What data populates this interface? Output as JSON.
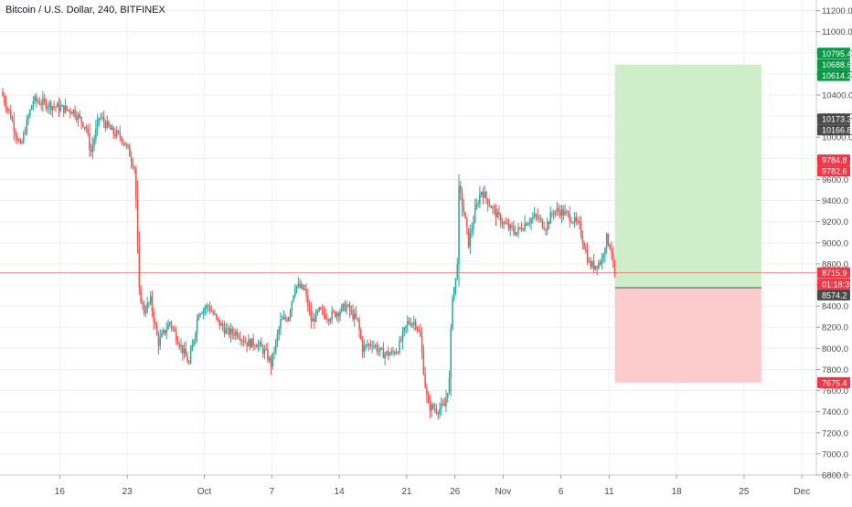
{
  "title": "Bitcoin / U.S. Dollar, 240, BITFINEX",
  "chart_data": {
    "type": "candlestick",
    "symbol": "Bitcoin / U.S. Dollar",
    "interval": "240",
    "exchange": "BITFINEX",
    "ylim": [
      6800,
      11300
    ],
    "y_ticks": [
      6800,
      7000,
      7200,
      7400,
      7600,
      7800,
      8000,
      8200,
      8400,
      8600,
      8800,
      9000,
      9200,
      9400,
      9600,
      9800,
      10000,
      10200,
      10400,
      10600,
      10800,
      11000,
      11200
    ],
    "y_tick_labels": [
      "6800.0",
      "7000.0",
      "7200.0",
      "7400.0",
      "7600.0",
      "7800.0",
      "8000.0",
      "8200.0",
      "8400.0",
      "8600.0",
      "8800.0",
      "9000.0",
      "9200.0",
      "9400.0",
      "9600.0",
      "9800.0",
      "10000.0",
      "10200.0",
      "10400.0",
      "10600.0",
      "10800.0",
      "11000.0",
      "11200.0"
    ],
    "x_ticks": [
      "16",
      "23",
      "Oct",
      "7",
      "14",
      "21",
      "26",
      "Nov",
      "6",
      "11",
      "18",
      "25",
      "Dec"
    ],
    "x_tick_days": [
      15,
      22,
      30,
      37,
      44,
      51,
      56,
      61,
      67,
      72,
      79,
      86,
      92
    ],
    "x_day_range": [
      8.8,
      93.5
    ],
    "price_path": [
      {
        "d": 9.0,
        "p": 10430
      },
      {
        "d": 10.0,
        "p": 10200
      },
      {
        "d": 11.0,
        "p": 9900
      },
      {
        "d": 12.3,
        "p": 10350
      },
      {
        "d": 13.5,
        "p": 10320
      },
      {
        "d": 15.0,
        "p": 10280
      },
      {
        "d": 16.5,
        "p": 10250
      },
      {
        "d": 17.8,
        "p": 10100
      },
      {
        "d": 18.3,
        "p": 9850
      },
      {
        "d": 19.2,
        "p": 10200
      },
      {
        "d": 20.5,
        "p": 10050
      },
      {
        "d": 21.5,
        "p": 10000
      },
      {
        "d": 22.3,
        "p": 9850
      },
      {
        "d": 22.9,
        "p": 9700
      },
      {
        "d": 23.3,
        "p": 8550
      },
      {
        "d": 23.8,
        "p": 8350
      },
      {
        "d": 24.5,
        "p": 8450
      },
      {
        "d": 25.3,
        "p": 8050
      },
      {
        "d": 26.5,
        "p": 8250
      },
      {
        "d": 27.5,
        "p": 8050
      },
      {
        "d": 28.5,
        "p": 7850
      },
      {
        "d": 29.5,
        "p": 8350
      },
      {
        "d": 30.5,
        "p": 8400
      },
      {
        "d": 31.5,
        "p": 8250
      },
      {
        "d": 32.5,
        "p": 8150
      },
      {
        "d": 33.5,
        "p": 8150
      },
      {
        "d": 34.5,
        "p": 8050
      },
      {
        "d": 35.5,
        "p": 8050
      },
      {
        "d": 36.5,
        "p": 7950
      },
      {
        "d": 37.0,
        "p": 7850
      },
      {
        "d": 38.0,
        "p": 8250
      },
      {
        "d": 38.8,
        "p": 8300
      },
      {
        "d": 39.5,
        "p": 8600
      },
      {
        "d": 40.5,
        "p": 8550
      },
      {
        "d": 41.2,
        "p": 8250
      },
      {
        "d": 42.0,
        "p": 8350
      },
      {
        "d": 43.0,
        "p": 8300
      },
      {
        "d": 44.0,
        "p": 8350
      },
      {
        "d": 44.8,
        "p": 8400
      },
      {
        "d": 46.0,
        "p": 8250
      },
      {
        "d": 46.5,
        "p": 8000
      },
      {
        "d": 47.5,
        "p": 8050
      },
      {
        "d": 48.5,
        "p": 7950
      },
      {
        "d": 49.5,
        "p": 7950
      },
      {
        "d": 50.2,
        "p": 8000
      },
      {
        "d": 51.2,
        "p": 8250
      },
      {
        "d": 52.0,
        "p": 8250
      },
      {
        "d": 52.5,
        "p": 8100
      },
      {
        "d": 53.0,
        "p": 7650
      },
      {
        "d": 53.3,
        "p": 7450
      },
      {
        "d": 54.3,
        "p": 7420
      },
      {
        "d": 55.0,
        "p": 7450
      },
      {
        "d": 55.5,
        "p": 7700
      },
      {
        "d": 55.8,
        "p": 8500
      },
      {
        "d": 56.3,
        "p": 8700
      },
      {
        "d": 56.5,
        "p": 9500
      },
      {
        "d": 57.0,
        "p": 9300
      },
      {
        "d": 57.5,
        "p": 9000
      },
      {
        "d": 58.2,
        "p": 9300
      },
      {
        "d": 58.8,
        "p": 9500
      },
      {
        "d": 59.8,
        "p": 9350
      },
      {
        "d": 60.5,
        "p": 9250
      },
      {
        "d": 61.5,
        "p": 9150
      },
      {
        "d": 62.5,
        "p": 9100
      },
      {
        "d": 63.5,
        "p": 9200
      },
      {
        "d": 64.5,
        "p": 9250
      },
      {
        "d": 65.5,
        "p": 9150
      },
      {
        "d": 66.3,
        "p": 9300
      },
      {
        "d": 67.0,
        "p": 9300
      },
      {
        "d": 68.0,
        "p": 9250
      },
      {
        "d": 69.0,
        "p": 9150
      },
      {
        "d": 70.0,
        "p": 8800
      },
      {
        "d": 70.5,
        "p": 8780
      },
      {
        "d": 71.3,
        "p": 8830
      },
      {
        "d": 71.8,
        "p": 9050
      },
      {
        "d": 72.3,
        "p": 8950
      },
      {
        "d": 72.6,
        "p": 8716
      }
    ],
    "current_price": 8715.9,
    "countdown": "01:18:39",
    "position_box": {
      "start_day": 72.6,
      "end_day": 87.8,
      "entry": 8574.2,
      "target": 10688.6,
      "stop": 7675.4
    },
    "price_labels": [
      {
        "text": "10795.4",
        "value": 10795.4,
        "color": "#089947"
      },
      {
        "text": "10688.6",
        "value": 10688.6,
        "color": "#089947"
      },
      {
        "text": "10614.2",
        "value": 10614.2,
        "color": "#089947"
      },
      {
        "text": "10173.3",
        "value": 10173.3,
        "color": "#4a4a4a"
      },
      {
        "text": "10166.8",
        "value": 10166.8,
        "color": "#4a4a4a"
      },
      {
        "text": "9784.8",
        "value": 9784.8,
        "color": "#f23645"
      },
      {
        "text": "9782.6",
        "value": 9782.6,
        "color": "#f23645"
      },
      {
        "text": "8715.9",
        "value": 8715.9,
        "color": "#f23645"
      },
      {
        "text": "01:18:39",
        "value": 8610,
        "color": "#f23645"
      },
      {
        "text": "8574.2",
        "value": 8574.2,
        "color": "#4a4a4a"
      },
      {
        "text": "7675.4",
        "value": 7675.4,
        "color": "#f23645"
      }
    ],
    "colors": {
      "up": "#26a69a",
      "down": "#ef5350",
      "profit_zone": "#cdeec9",
      "loss_zone": "#fccbcb",
      "grid": "#eef0f3",
      "current_price_line": "#ef5350"
    },
    "grid": true
  }
}
